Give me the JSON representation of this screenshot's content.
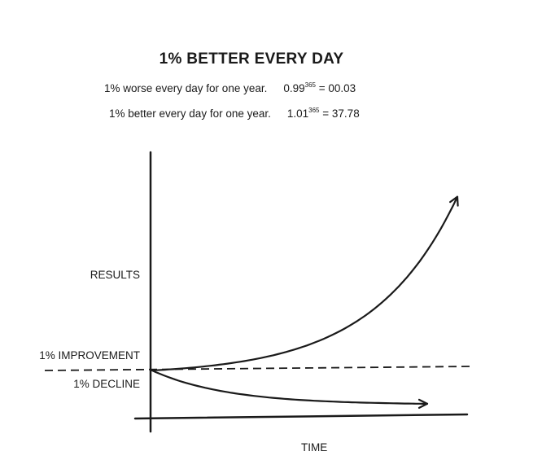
{
  "title": "1% BETTER EVERY DAY",
  "formulas": [
    {
      "text": "1% worse every day for one year.",
      "base": "0.99",
      "exponent": "365",
      "result": "= 00.03"
    },
    {
      "text": "1% better every day for one year.",
      "base": "1.01",
      "exponent": "365",
      "result": "= 37.78"
    }
  ],
  "chart_data": {
    "type": "line",
    "title": "1% BETTER EVERY DAY",
    "xlabel": "TIME",
    "ylabel": "RESULTS",
    "grid": false,
    "annotations": [
      "1% IMPROVEMENT",
      "1% DECLINE"
    ],
    "baseline": 1,
    "xlim": [
      0,
      365
    ],
    "series": [
      {
        "name": "1% IMPROVEMENT",
        "rate": 1.01,
        "x_end": 365,
        "y_end": 37.78
      },
      {
        "name": "1% DECLINE",
        "rate": 0.99,
        "x_end": 365,
        "y_end": 0.03
      }
    ]
  },
  "colors": {
    "ink": "#1a1a1a",
    "background": "#ffffff"
  }
}
